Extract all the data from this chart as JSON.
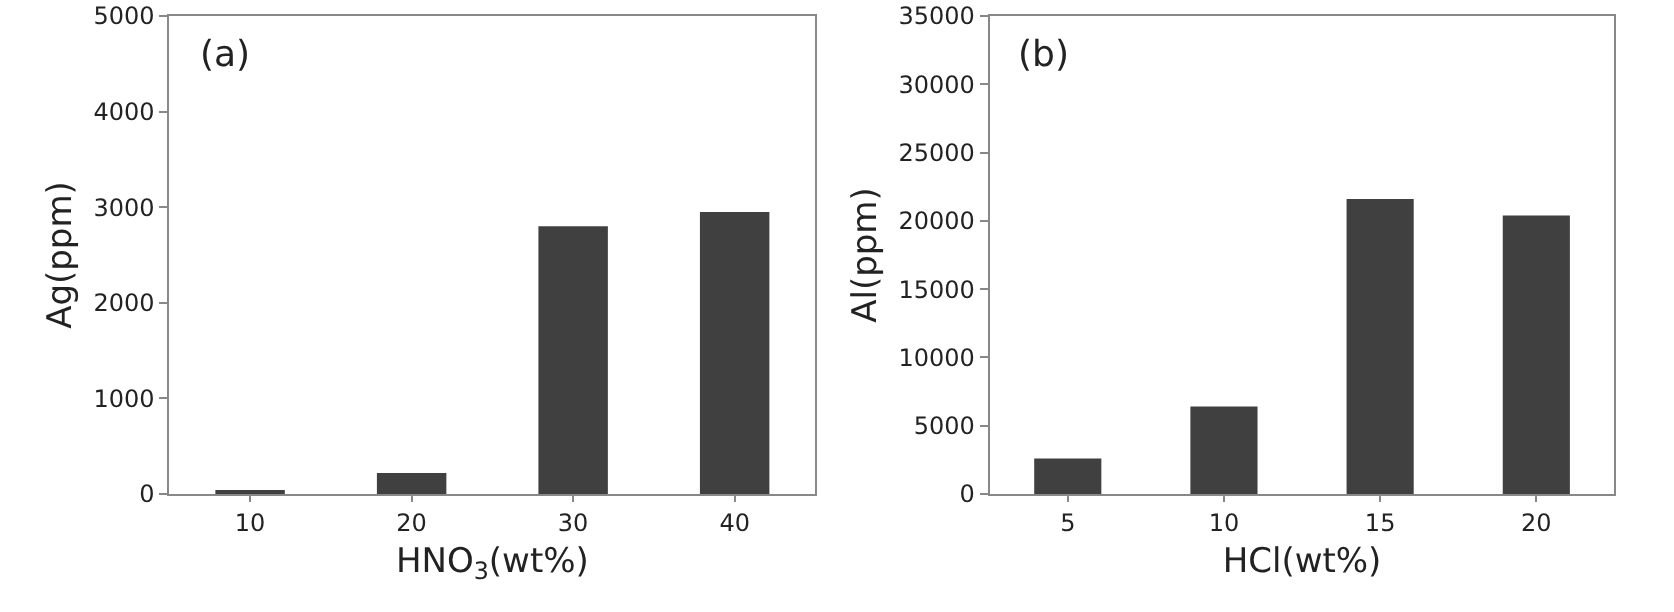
{
  "chart_data": [
    {
      "type": "bar",
      "categories": [
        "10",
        "20",
        "30",
        "40"
      ],
      "values": [
        30,
        220,
        2800,
        2950
      ],
      "color": "#404040",
      "xlabel": "HNO$_{3}$(wt%)",
      "ylabel": "Ag(ppm)",
      "ylim": [
        0,
        5000
      ],
      "yticks": [
        0,
        1000,
        2000,
        3000,
        4000,
        5000
      ],
      "annotations": [
        "(a)"
      ]
    },
    {
      "type": "bar",
      "categories": [
        "5",
        "10",
        "15",
        "20"
      ],
      "values": [
        2600,
        6400,
        21600,
        20400
      ],
      "color": "#404040",
      "xlabel": "HCl(wt%)",
      "ylabel": "Al(ppm)",
      "ylim": [
        0,
        35000
      ],
      "yticks": [
        0,
        5000,
        10000,
        15000,
        20000,
        25000,
        30000,
        35000
      ],
      "annotations": [
        "(b)"
      ]
    }
  ]
}
